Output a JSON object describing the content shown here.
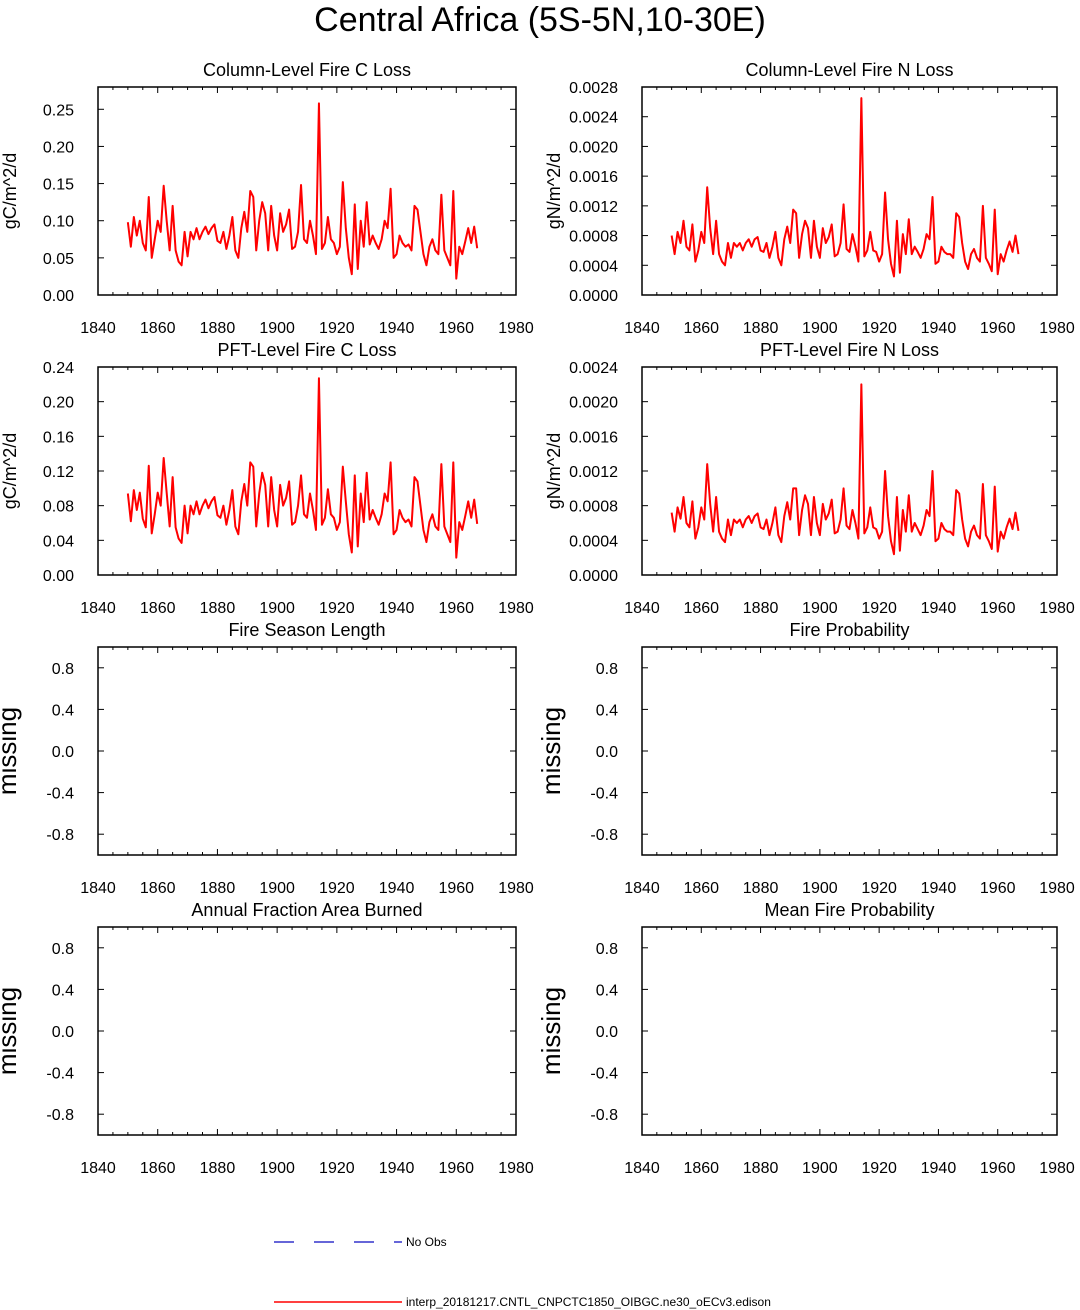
{
  "title": "Central Africa (5S-5N,10-30E)",
  "colors": {
    "model": "#ff0000",
    "obs": "#3333cc",
    "axis": "#000000"
  },
  "legend": [
    {
      "label": "No Obs",
      "style": "dashed",
      "color": "#3333cc"
    },
    {
      "label": "interp_20181217.CNTL_CNPCTC1850_OIBGC.ne30_oECv3.edison",
      "style": "solid",
      "color": "#ff0000"
    }
  ],
  "chart_data": [
    {
      "type": "line",
      "title": "Column-Level Fire C Loss",
      "ylabel": "gC/m^2/d",
      "xlim": [
        1840,
        1980
      ],
      "ylim": [
        0,
        0.28
      ],
      "xticks": [
        "1840",
        "1860",
        "1880",
        "1900",
        "1920",
        "1940",
        "1960",
        "1980"
      ],
      "yticks": [
        "0.00",
        "0.05",
        "0.10",
        "0.15",
        "0.20",
        "0.25"
      ],
      "x_start": 1850,
      "series": [
        {
          "values": [
            0.098,
            0.065,
            0.105,
            0.08,
            0.1,
            0.07,
            0.06,
            0.132,
            0.05,
            0.075,
            0.1,
            0.085,
            0.147,
            0.1,
            0.06,
            0.12,
            0.06,
            0.045,
            0.04,
            0.085,
            0.052,
            0.085,
            0.075,
            0.09,
            0.075,
            0.085,
            0.092,
            0.082,
            0.09,
            0.095,
            0.073,
            0.07,
            0.085,
            0.062,
            0.08,
            0.105,
            0.06,
            0.05,
            0.09,
            0.112,
            0.085,
            0.14,
            0.132,
            0.06,
            0.1,
            0.125,
            0.11,
            0.06,
            0.12,
            0.08,
            0.06,
            0.11,
            0.085,
            0.095,
            0.115,
            0.062,
            0.065,
            0.085,
            0.148,
            0.075,
            0.07,
            0.1,
            0.08,
            0.055,
            0.258,
            0.062,
            0.07,
            0.105,
            0.075,
            0.07,
            0.055,
            0.065,
            0.152,
            0.09,
            0.05,
            0.028,
            0.122,
            0.035,
            0.1,
            0.065,
            0.125,
            0.068,
            0.08,
            0.07,
            0.062,
            0.075,
            0.1,
            0.09,
            0.143,
            0.05,
            0.055,
            0.08,
            0.07,
            0.065,
            0.068,
            0.06,
            0.12,
            0.115,
            0.085,
            0.055,
            0.04,
            0.065,
            0.075,
            0.06,
            0.055,
            0.135,
            0.06,
            0.05,
            0.04,
            0.14,
            0.022,
            0.065,
            0.055,
            0.072,
            0.09,
            0.07,
            0.092,
            0.063
          ]
        }
      ]
    },
    {
      "type": "line",
      "title": "Column-Level Fire N Loss",
      "ylabel": "gN/m^2/d",
      "xlim": [
        1840,
        1980
      ],
      "ylim": [
        0,
        0.0028
      ],
      "xticks": [
        "1840",
        "1860",
        "1880",
        "1900",
        "1920",
        "1940",
        "1960",
        "1980"
      ],
      "yticks": [
        "0.0000",
        "0.0004",
        "0.0008",
        "0.0012",
        "0.0016",
        "0.0020",
        "0.0024",
        "0.0028"
      ],
      "x_start": 1850,
      "series": [
        {
          "values": [
            0.0008,
            0.00055,
            0.00085,
            0.0007,
            0.001,
            0.00065,
            0.0006,
            0.00095,
            0.00045,
            0.0006,
            0.00085,
            0.0007,
            0.00145,
            0.0009,
            0.00055,
            0.001,
            0.00055,
            0.00045,
            0.0004,
            0.0007,
            0.0005,
            0.0007,
            0.00065,
            0.0007,
            0.0006,
            0.0007,
            0.00075,
            0.00065,
            0.00075,
            0.00078,
            0.0006,
            0.00058,
            0.0007,
            0.0005,
            0.00065,
            0.00085,
            0.0005,
            0.0004,
            0.00075,
            0.00092,
            0.0007,
            0.00115,
            0.0011,
            0.0005,
            0.00082,
            0.001,
            0.0009,
            0.0005,
            0.001,
            0.00065,
            0.0005,
            0.0009,
            0.0007,
            0.00078,
            0.00095,
            0.00052,
            0.00055,
            0.0007,
            0.00122,
            0.00062,
            0.00058,
            0.00082,
            0.00065,
            0.00045,
            0.00265,
            0.00052,
            0.0006,
            0.00085,
            0.0006,
            0.00058,
            0.00045,
            0.00055,
            0.00138,
            0.00075,
            0.00042,
            0.00025,
            0.001,
            0.0003,
            0.00082,
            0.00055,
            0.00102,
            0.00055,
            0.00065,
            0.00058,
            0.0005,
            0.00062,
            0.00082,
            0.00075,
            0.00132,
            0.00042,
            0.00045,
            0.00065,
            0.00058,
            0.00055,
            0.00055,
            0.0005,
            0.0011,
            0.00105,
            0.0007,
            0.00045,
            0.00035,
            0.00055,
            0.00062,
            0.0005,
            0.00045,
            0.0012,
            0.0005,
            0.00042,
            0.00032,
            0.00115,
            0.00028,
            0.00055,
            0.00045,
            0.0006,
            0.00072,
            0.00058,
            0.0008,
            0.00055
          ]
        }
      ]
    },
    {
      "type": "line",
      "title": "PFT-Level Fire C Loss",
      "ylabel": "gC/m^2/d",
      "xlim": [
        1840,
        1980
      ],
      "ylim": [
        0,
        0.24
      ],
      "xticks": [
        "1840",
        "1860",
        "1880",
        "1900",
        "1920",
        "1940",
        "1960",
        "1980"
      ],
      "yticks": [
        "0.00",
        "0.04",
        "0.08",
        "0.12",
        "0.16",
        "0.20",
        "0.24"
      ],
      "x_start": 1850,
      "series": [
        {
          "values": [
            0.094,
            0.062,
            0.098,
            0.075,
            0.095,
            0.065,
            0.055,
            0.126,
            0.048,
            0.07,
            0.095,
            0.08,
            0.135,
            0.095,
            0.056,
            0.113,
            0.055,
            0.042,
            0.037,
            0.08,
            0.048,
            0.08,
            0.07,
            0.085,
            0.07,
            0.08,
            0.087,
            0.077,
            0.085,
            0.09,
            0.069,
            0.066,
            0.08,
            0.058,
            0.075,
            0.098,
            0.056,
            0.047,
            0.085,
            0.105,
            0.08,
            0.13,
            0.125,
            0.056,
            0.094,
            0.118,
            0.104,
            0.056,
            0.113,
            0.075,
            0.056,
            0.104,
            0.08,
            0.089,
            0.108,
            0.058,
            0.061,
            0.08,
            0.115,
            0.07,
            0.066,
            0.094,
            0.075,
            0.052,
            0.227,
            0.058,
            0.066,
            0.099,
            0.07,
            0.066,
            0.052,
            0.061,
            0.125,
            0.085,
            0.047,
            0.026,
            0.115,
            0.033,
            0.094,
            0.061,
            0.118,
            0.064,
            0.075,
            0.066,
            0.058,
            0.07,
            0.094,
            0.085,
            0.13,
            0.047,
            0.052,
            0.075,
            0.066,
            0.061,
            0.064,
            0.056,
            0.113,
            0.108,
            0.08,
            0.052,
            0.038,
            0.061,
            0.07,
            0.056,
            0.052,
            0.128,
            0.056,
            0.047,
            0.038,
            0.13,
            0.02,
            0.061,
            0.052,
            0.068,
            0.085,
            0.066,
            0.087,
            0.059
          ]
        }
      ]
    },
    {
      "type": "line",
      "title": "PFT-Level Fire N Loss",
      "ylabel": "gN/m^2/d",
      "xlim": [
        1840,
        1980
      ],
      "ylim": [
        0,
        0.0024
      ],
      "xticks": [
        "1840",
        "1860",
        "1880",
        "1900",
        "1920",
        "1940",
        "1960",
        "1980"
      ],
      "yticks": [
        "0.0000",
        "0.0004",
        "0.0008",
        "0.0012",
        "0.0016",
        "0.0020",
        "0.0024"
      ],
      "x_start": 1850,
      "series": [
        {
          "values": [
            0.00072,
            0.0005,
            0.00078,
            0.00065,
            0.0009,
            0.0006,
            0.00055,
            0.00085,
            0.00042,
            0.00055,
            0.00078,
            0.00064,
            0.00128,
            0.00082,
            0.0005,
            0.0009,
            0.0005,
            0.00042,
            0.00038,
            0.00064,
            0.00046,
            0.00064,
            0.0006,
            0.00064,
            0.00055,
            0.00064,
            0.00068,
            0.0006,
            0.00068,
            0.00071,
            0.00055,
            0.00053,
            0.00064,
            0.00046,
            0.0006,
            0.00078,
            0.00046,
            0.00038,
            0.00068,
            0.00084,
            0.00064,
            0.001,
            0.001,
            0.00046,
            0.00075,
            0.00092,
            0.00082,
            0.00046,
            0.0009,
            0.0006,
            0.00046,
            0.00082,
            0.00064,
            0.00071,
            0.00087,
            0.00048,
            0.0005,
            0.00064,
            0.001,
            0.00057,
            0.00053,
            0.00075,
            0.0006,
            0.00042,
            0.0022,
            0.00048,
            0.00055,
            0.00078,
            0.00055,
            0.00053,
            0.00042,
            0.0005,
            0.0012,
            0.00068,
            0.00039,
            0.00024,
            0.0009,
            0.00028,
            0.00075,
            0.0005,
            0.00092,
            0.0005,
            0.0006,
            0.00053,
            0.00046,
            0.00057,
            0.00075,
            0.00068,
            0.0012,
            0.00039,
            0.00042,
            0.0006,
            0.00053,
            0.0005,
            0.0005,
            0.00046,
            0.00098,
            0.00094,
            0.00064,
            0.00042,
            0.00033,
            0.0005,
            0.00057,
            0.00046,
            0.00042,
            0.00105,
            0.00046,
            0.00039,
            0.0003,
            0.00102,
            0.00027,
            0.0005,
            0.00042,
            0.00055,
            0.00065,
            0.00053,
            0.00072,
            0.00051
          ]
        }
      ]
    },
    {
      "type": "line",
      "title": "Fire Season Length",
      "ylabel": "missing",
      "xlim": [
        1840,
        1980
      ],
      "ylim": [
        -1,
        1
      ],
      "xticks": [
        "1840",
        "1860",
        "1880",
        "1900",
        "1920",
        "1940",
        "1960",
        "1980"
      ],
      "yticks": [
        "-0.8",
        "-0.4",
        "0.0",
        "0.4",
        "0.8"
      ],
      "series": []
    },
    {
      "type": "line",
      "title": "Fire Probability",
      "ylabel": "missing",
      "xlim": [
        1840,
        1980
      ],
      "ylim": [
        -1,
        1
      ],
      "xticks": [
        "1840",
        "1860",
        "1880",
        "1900",
        "1920",
        "1940",
        "1960",
        "1980"
      ],
      "yticks": [
        "-0.8",
        "-0.4",
        "0.0",
        "0.4",
        "0.8"
      ],
      "series": []
    },
    {
      "type": "line",
      "title": "Annual Fraction Area Burned",
      "ylabel": "missing",
      "xlim": [
        1840,
        1980
      ],
      "ylim": [
        -1,
        1
      ],
      "xticks": [
        "1840",
        "1860",
        "1880",
        "1900",
        "1920",
        "1940",
        "1960",
        "1980"
      ],
      "yticks": [
        "-0.8",
        "-0.4",
        "0.0",
        "0.4",
        "0.8"
      ],
      "series": []
    },
    {
      "type": "line",
      "title": "Mean Fire Probability",
      "ylabel": "missing",
      "xlim": [
        1840,
        1980
      ],
      "ylim": [
        -1,
        1
      ],
      "xticks": [
        "1840",
        "1860",
        "1880",
        "1900",
        "1920",
        "1940",
        "1960",
        "1980"
      ],
      "yticks": [
        "-0.8",
        "-0.4",
        "0.0",
        "0.4",
        "0.8"
      ],
      "series": []
    }
  ]
}
